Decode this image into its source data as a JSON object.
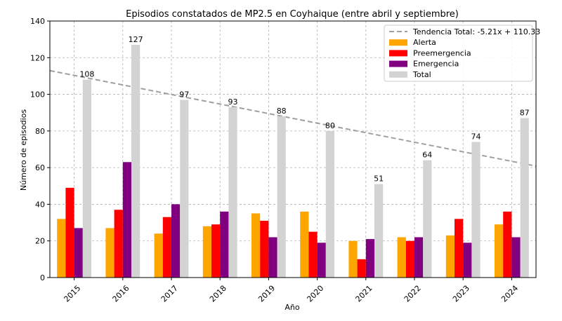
{
  "chart_data": {
    "type": "bar",
    "title": "Episodios constatados de MP2.5 en Coyhaique (entre abril y septiembre)",
    "xlabel": "Año",
    "ylabel": "Número de episodios",
    "categories": [
      "2015",
      "2016",
      "2017",
      "2018",
      "2019",
      "2020",
      "2021",
      "2022",
      "2023",
      "2024"
    ],
    "ylim": [
      0,
      140
    ],
    "yticks": [
      0,
      20,
      40,
      60,
      80,
      100,
      120,
      140
    ],
    "grid": true,
    "legend_position": "top-right",
    "series": [
      {
        "name": "Alerta",
        "color": "#FFA500",
        "values": [
          32,
          27,
          24,
          28,
          35,
          36,
          20,
          22,
          23,
          29
        ]
      },
      {
        "name": "Preemergencia",
        "color": "#FF0000",
        "values": [
          49,
          37,
          33,
          29,
          31,
          25,
          10,
          20,
          32,
          36
        ]
      },
      {
        "name": "Emergencia",
        "color": "#800080",
        "values": [
          27,
          63,
          40,
          36,
          22,
          19,
          21,
          22,
          19,
          22
        ]
      },
      {
        "name": "Total",
        "color": "#D3D3D3",
        "values": [
          108,
          127,
          97,
          93,
          88,
          80,
          51,
          64,
          74,
          87
        ]
      }
    ],
    "total_labels": [
      "108",
      "127",
      "97",
      "93",
      "88",
      "80",
      "51",
      "64",
      "74",
      "87"
    ],
    "trend": {
      "name": "Tendencia Total: -5.21x + 110.33",
      "color": "#A0A0A0",
      "slope": -5.21,
      "intercept": 110.33
    }
  }
}
